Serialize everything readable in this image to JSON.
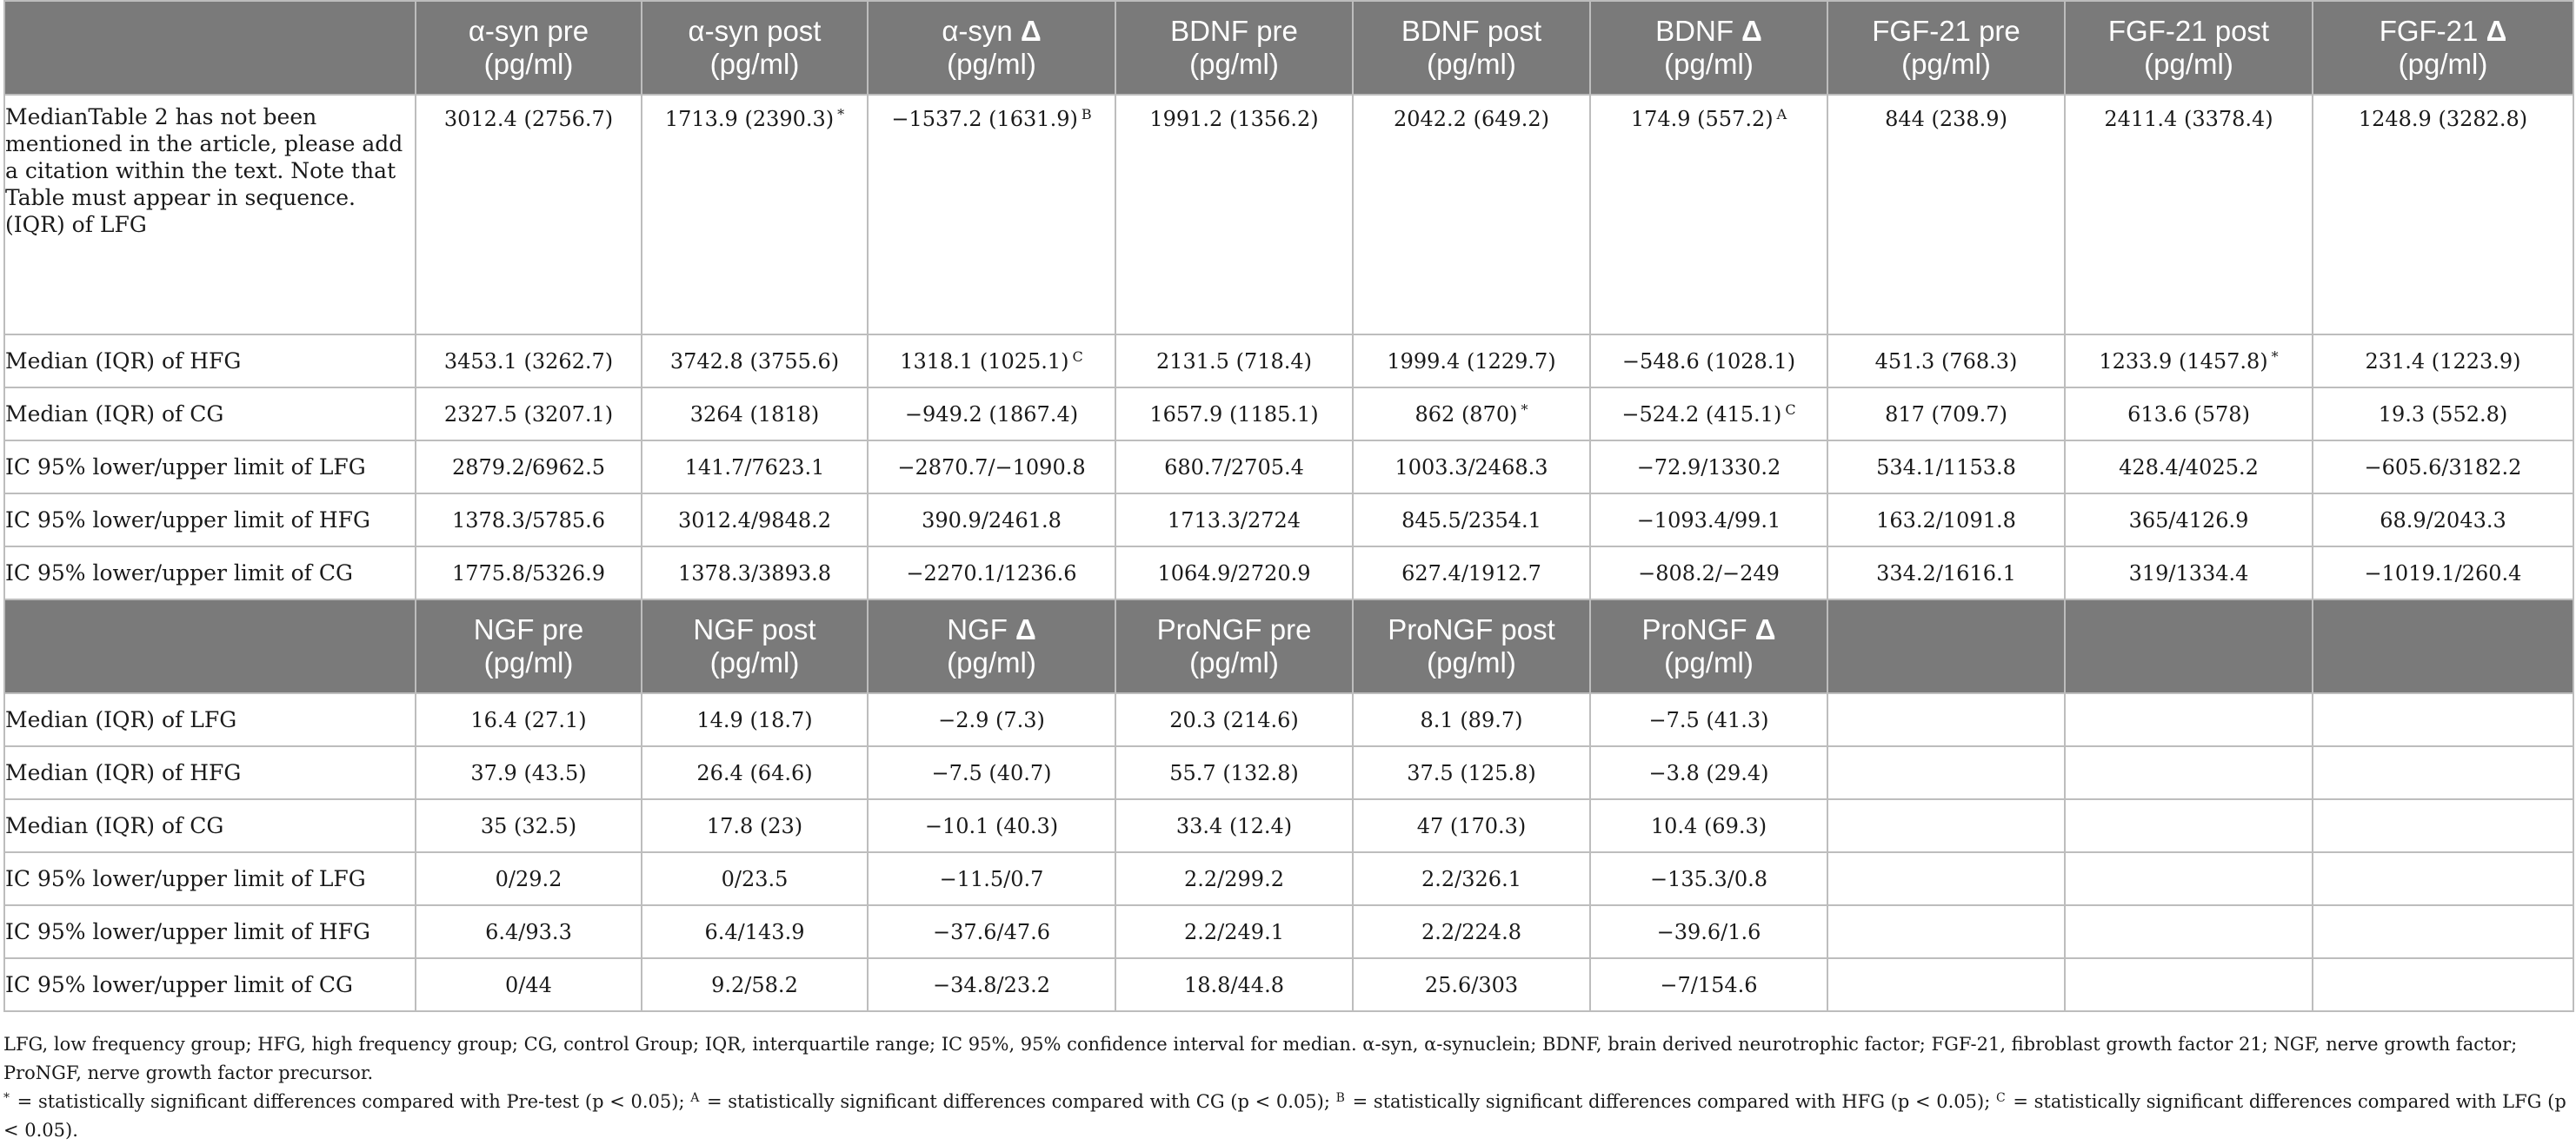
{
  "table_top": {
    "headers": [
      {
        "name": "α-syn pre",
        "unit": "(pg/ml)"
      },
      {
        "name": "α-syn post",
        "unit": "(pg/ml)"
      },
      {
        "name": "α-syn Δ",
        "unit": "(pg/ml)"
      },
      {
        "name": "BDNF pre",
        "unit": "(pg/ml)"
      },
      {
        "name": "BDNF post",
        "unit": "(pg/ml)"
      },
      {
        "name": "BDNF Δ",
        "unit": "(pg/ml)"
      },
      {
        "name": "FGF-21 pre",
        "unit": "(pg/ml)"
      },
      {
        "name": "FGF-21 post",
        "unit": "(pg/ml)"
      },
      {
        "name": "FGF-21 Δ",
        "unit": "(pg/ml)"
      }
    ],
    "rows": [
      {
        "label": "MedianTable 2 has not been mentioned in the article, please add a citation within the text. Note that Table must appear in sequence. (IQR) of LFG",
        "cells": [
          {
            "v": "3012.4 (2756.7)",
            "s": ""
          },
          {
            "v": "1713.9 (2390.3)",
            "s": "*"
          },
          {
            "v": "−1537.2 (1631.9)",
            "s": "B"
          },
          {
            "v": "1991.2 (1356.2)",
            "s": ""
          },
          {
            "v": "2042.2 (649.2)",
            "s": ""
          },
          {
            "v": "174.9 (557.2)",
            "s": "A"
          },
          {
            "v": "844 (238.9)",
            "s": ""
          },
          {
            "v": "2411.4 (3378.4)",
            "s": ""
          },
          {
            "v": "1248.9 (3282.8)",
            "s": ""
          }
        ]
      },
      {
        "label": "Median (IQR) of HFG",
        "cells": [
          {
            "v": "3453.1 (3262.7)",
            "s": ""
          },
          {
            "v": "3742.8 (3755.6)",
            "s": ""
          },
          {
            "v": "1318.1 (1025.1)",
            "s": "C"
          },
          {
            "v": "2131.5 (718.4)",
            "s": ""
          },
          {
            "v": "1999.4 (1229.7)",
            "s": ""
          },
          {
            "v": "−548.6 (1028.1)",
            "s": ""
          },
          {
            "v": "451.3 (768.3)",
            "s": ""
          },
          {
            "v": "1233.9 (1457.8)",
            "s": "*"
          },
          {
            "v": "231.4 (1223.9)",
            "s": ""
          }
        ]
      },
      {
        "label": "Median (IQR) of CG",
        "cells": [
          {
            "v": "2327.5 (3207.1)",
            "s": ""
          },
          {
            "v": "3264 (1818)",
            "s": ""
          },
          {
            "v": "−949.2 (1867.4)",
            "s": ""
          },
          {
            "v": "1657.9 (1185.1)",
            "s": ""
          },
          {
            "v": "862 (870)",
            "s": "*"
          },
          {
            "v": "−524.2 (415.1)",
            "s": "C"
          },
          {
            "v": "817 (709.7)",
            "s": ""
          },
          {
            "v": "613.6 (578)",
            "s": ""
          },
          {
            "v": "19.3 (552.8)",
            "s": ""
          }
        ]
      },
      {
        "label": "IC 95% lower/upper limit of LFG",
        "cells": [
          {
            "v": "2879.2/6962.5",
            "s": ""
          },
          {
            "v": "141.7/7623.1",
            "s": ""
          },
          {
            "v": "−2870.7/−1090.8",
            "s": ""
          },
          {
            "v": "680.7/2705.4",
            "s": ""
          },
          {
            "v": "1003.3/2468.3",
            "s": ""
          },
          {
            "v": "−72.9/1330.2",
            "s": ""
          },
          {
            "v": "534.1/1153.8",
            "s": ""
          },
          {
            "v": "428.4/4025.2",
            "s": ""
          },
          {
            "v": "−605.6/3182.2",
            "s": ""
          }
        ]
      },
      {
        "label": "IC 95% lower/upper limit of HFG",
        "cells": [
          {
            "v": "1378.3/5785.6",
            "s": ""
          },
          {
            "v": "3012.4/9848.2",
            "s": ""
          },
          {
            "v": "390.9/2461.8",
            "s": ""
          },
          {
            "v": "1713.3/2724",
            "s": ""
          },
          {
            "v": "845.5/2354.1",
            "s": ""
          },
          {
            "v": "−1093.4/99.1",
            "s": ""
          },
          {
            "v": "163.2/1091.8",
            "s": ""
          },
          {
            "v": "365/4126.9",
            "s": ""
          },
          {
            "v": "68.9/2043.3",
            "s": ""
          }
        ]
      },
      {
        "label": "IC 95% lower/upper limit of CG",
        "cells": [
          {
            "v": "1775.8/5326.9",
            "s": ""
          },
          {
            "v": "1378.3/3893.8",
            "s": ""
          },
          {
            "v": "−2270.1/1236.6",
            "s": ""
          },
          {
            "v": "1064.9/2720.9",
            "s": ""
          },
          {
            "v": "627.4/1912.7",
            "s": ""
          },
          {
            "v": "−808.2/−249",
            "s": ""
          },
          {
            "v": "334.2/1616.1",
            "s": ""
          },
          {
            "v": "319/1334.4",
            "s": ""
          },
          {
            "v": "−1019.1/260.4",
            "s": ""
          }
        ]
      }
    ]
  },
  "table_bottom": {
    "headers": [
      {
        "name": "NGF pre",
        "unit": "(pg/ml)"
      },
      {
        "name": "NGF post",
        "unit": "(pg/ml)"
      },
      {
        "name": "NGF Δ",
        "unit": "(pg/ml)"
      },
      {
        "name": "ProNGF pre",
        "unit": "(pg/ml)"
      },
      {
        "name": "ProNGF post",
        "unit": "(pg/ml)"
      },
      {
        "name": "ProNGF Δ",
        "unit": "(pg/ml)"
      }
    ],
    "rows": [
      {
        "label": "Median (IQR) of LFG",
        "cells": [
          "16.4 (27.1)",
          "14.9 (18.7)",
          "−2.9 (7.3)",
          "20.3 (214.6)",
          "8.1 (89.7)",
          "−7.5 (41.3)"
        ]
      },
      {
        "label": "Median (IQR) of HFG",
        "cells": [
          "37.9 (43.5)",
          "26.4 (64.6)",
          "−7.5 (40.7)",
          "55.7 (132.8)",
          "37.5 (125.8)",
          "−3.8 (29.4)"
        ]
      },
      {
        "label": "Median (IQR) of CG",
        "cells": [
          "35 (32.5)",
          "17.8 (23)",
          "−10.1 (40.3)",
          "33.4 (12.4)",
          "47 (170.3)",
          "10.4 (69.3)"
        ]
      },
      {
        "label": "IC 95% lower/upper limit of LFG",
        "cells": [
          "0/29.2",
          "0/23.5",
          "−11.5/0.7",
          "2.2/299.2",
          "2.2/326.1",
          "−135.3/0.8"
        ]
      },
      {
        "label": "IC 95% lower/upper limit of HFG",
        "cells": [
          "6.4/93.3",
          "6.4/143.9",
          "−37.6/47.6",
          "2.2/249.1",
          "2.2/224.8",
          "−39.6/1.6"
        ]
      },
      {
        "label": "IC 95% lower/upper limit of CG",
        "cells": [
          "0/44",
          "9.2/58.2",
          "−34.8/23.2",
          "18.8/44.8",
          "25.6/303",
          "−7/154.6"
        ]
      }
    ]
  },
  "footnotes": {
    "abbreviations": "LFG, low frequency group; HFG, high frequency group; CG, control Group; IQR, interquartile range; IC 95%, 95% confidence interval for median. α-syn, α-synuclein; BDNF, brain derived neurotrophic factor; FGF-21, fibroblast growth factor 21; NGF, nerve growth factor; ProNGF, nerve growth factor precursor.",
    "significance": [
      {
        "mark": "*",
        "text": " = statistically significant differences compared with Pre-test (p < 0.05); "
      },
      {
        "mark": "A",
        "text": " = statistically significant differences compared with CG (p < 0.05); "
      },
      {
        "mark": "B",
        "text": " = statistically significant differences compared with HFG (p < 0.05); "
      },
      {
        "mark": "C",
        "text": " = statistically significant differences compared with LFG (p < 0.05)."
      }
    ]
  }
}
